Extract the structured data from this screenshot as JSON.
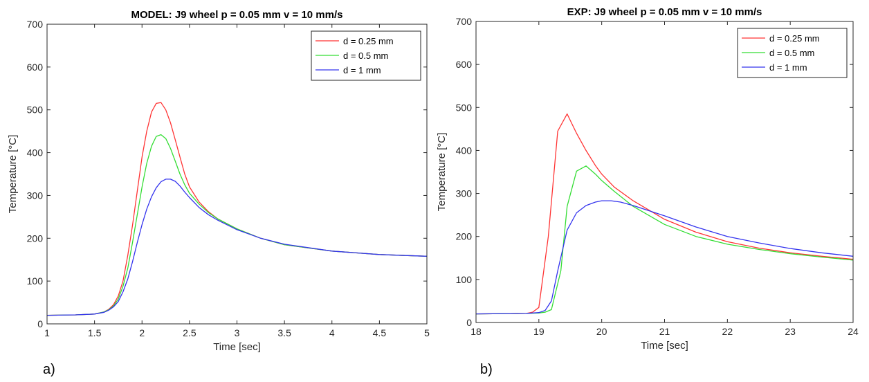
{
  "chart_data": [
    {
      "type": "line",
      "title": "MODEL: J9 wheel p = 0.05 mm v = 10 mm/s",
      "xlabel": "Time [sec]",
      "ylabel": "Temperature [°C]",
      "xlim": [
        1,
        5
      ],
      "ylim": [
        0,
        700
      ],
      "xticks": [
        1,
        1.5,
        2,
        2.5,
        3,
        3.5,
        4,
        4.5,
        5
      ],
      "xtick_labels": [
        "1",
        "1.5",
        "2",
        "2.5",
        "3",
        "3.5",
        "4",
        "4.5",
        "5"
      ],
      "yticks": [
        0,
        100,
        200,
        300,
        400,
        500,
        600,
        700
      ],
      "ytick_labels": [
        "0",
        "100",
        "200",
        "300",
        "400",
        "500",
        "600",
        "700"
      ],
      "legend_position": "top-right",
      "panel_label": "a)",
      "series": [
        {
          "name": "d = 0.25 mm",
          "color": "#ff3333",
          "x": [
            1,
            1.3,
            1.5,
            1.6,
            1.65,
            1.7,
            1.75,
            1.8,
            1.85,
            1.9,
            1.95,
            2,
            2.05,
            2.1,
            2.15,
            2.2,
            2.25,
            2.3,
            2.35,
            2.4,
            2.45,
            2.5,
            2.6,
            2.7,
            2.8,
            3,
            3.25,
            3.5,
            4,
            4.5,
            5
          ],
          "y": [
            20,
            21,
            23,
            28,
            34,
            45,
            65,
            100,
            160,
            230,
            310,
            390,
            450,
            495,
            515,
            517,
            500,
            470,
            430,
            390,
            350,
            320,
            285,
            262,
            245,
            222,
            200,
            185,
            170,
            162,
            158
          ]
        },
        {
          "name": "d = 0.5 mm",
          "color": "#33dd33",
          "x": [
            1,
            1.3,
            1.5,
            1.6,
            1.65,
            1.7,
            1.75,
            1.8,
            1.85,
            1.9,
            1.95,
            2,
            2.05,
            2.1,
            2.15,
            2.2,
            2.25,
            2.3,
            2.35,
            2.4,
            2.45,
            2.5,
            2.6,
            2.7,
            2.8,
            3,
            3.25,
            3.5,
            4,
            4.5,
            5
          ],
          "y": [
            20,
            21,
            23,
            28,
            33,
            42,
            58,
            88,
            130,
            190,
            255,
            320,
            375,
            415,
            438,
            442,
            433,
            410,
            380,
            350,
            325,
            305,
            280,
            260,
            245,
            222,
            200,
            185,
            170,
            162,
            158
          ]
        },
        {
          "name": "d = 1 mm",
          "color": "#3333ee",
          "x": [
            1,
            1.3,
            1.5,
            1.6,
            1.65,
            1.7,
            1.75,
            1.8,
            1.85,
            1.9,
            1.95,
            2,
            2.05,
            2.1,
            2.15,
            2.2,
            2.25,
            2.3,
            2.35,
            2.4,
            2.45,
            2.5,
            2.6,
            2.7,
            2.8,
            3,
            3.25,
            3.5,
            4,
            4.5,
            5
          ],
          "y": [
            20,
            21,
            23,
            27,
            32,
            40,
            52,
            75,
            105,
            145,
            190,
            232,
            268,
            297,
            318,
            332,
            338,
            338,
            333,
            322,
            308,
            295,
            272,
            255,
            242,
            220,
            200,
            186,
            170,
            162,
            158
          ]
        }
      ]
    },
    {
      "type": "line",
      "title": "EXP: J9 wheel p = 0.05 mm v = 10 mm/s",
      "xlabel": "Time [sec]",
      "ylabel": "Temperature [°C]",
      "xlim": [
        18,
        24
      ],
      "ylim": [
        0,
        700
      ],
      "xticks": [
        18,
        19,
        20,
        21,
        22,
        23,
        24
      ],
      "xtick_labels": [
        "18",
        "19",
        "20",
        "21",
        "22",
        "23",
        "24"
      ],
      "yticks": [
        0,
        100,
        200,
        300,
        400,
        500,
        600,
        700
      ],
      "ytick_labels": [
        "0",
        "100",
        "200",
        "300",
        "400",
        "500",
        "600",
        "700"
      ],
      "legend_position": "top-right",
      "panel_label": "b)",
      "series": [
        {
          "name": "d = 0.25 mm",
          "color": "#ff3333",
          "x": [
            18,
            18.8,
            18.9,
            19,
            19.15,
            19.3,
            19.45,
            19.6,
            19.75,
            19.9,
            20,
            20.2,
            20.5,
            21,
            21.5,
            22,
            22.5,
            23,
            23.5,
            24
          ],
          "y": [
            20,
            21,
            24,
            35,
            200,
            445,
            485,
            440,
            400,
            365,
            345,
            315,
            283,
            240,
            210,
            188,
            173,
            162,
            154,
            147
          ]
        },
        {
          "name": "d = 0.5 mm",
          "color": "#33dd33",
          "x": [
            18,
            18.8,
            19,
            19.1,
            19.2,
            19.35,
            19.45,
            19.6,
            19.75,
            19.9,
            20,
            20.2,
            20.5,
            21,
            21.5,
            22,
            22.5,
            23,
            23.5,
            24
          ],
          "y": [
            20,
            21,
            22,
            24,
            30,
            120,
            270,
            352,
            364,
            345,
            330,
            305,
            270,
            228,
            200,
            182,
            170,
            160,
            152,
            145
          ]
        },
        {
          "name": "d = 1 mm",
          "color": "#3333ee",
          "x": [
            18,
            18.8,
            19,
            19.1,
            19.2,
            19.3,
            19.45,
            19.6,
            19.75,
            19.9,
            20,
            20.15,
            20.3,
            20.5,
            21,
            21.5,
            22,
            22.5,
            23,
            23.5,
            24
          ],
          "y": [
            20,
            21,
            23,
            28,
            50,
            120,
            215,
            255,
            272,
            280,
            283,
            283,
            280,
            272,
            248,
            222,
            200,
            185,
            172,
            162,
            154
          ]
        }
      ]
    }
  ]
}
